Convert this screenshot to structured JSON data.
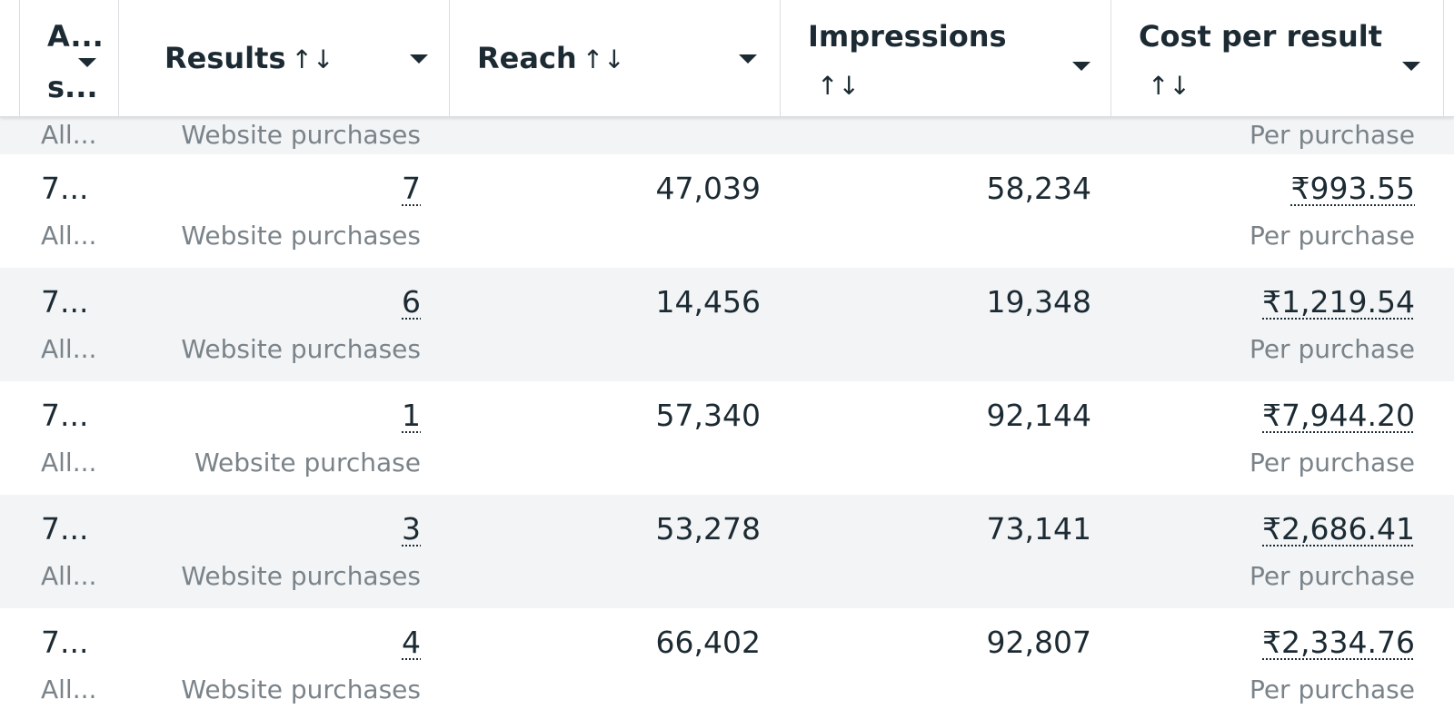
{
  "columns": {
    "account": {
      "line1": "A...",
      "line2": "s..."
    },
    "results": {
      "label": "Results",
      "sort": "↑↓"
    },
    "reach": {
      "label": "Reach",
      "sort": "↑↓"
    },
    "impressions": {
      "label": "Impressions",
      "sort": "↑↓"
    },
    "cost_per_result": {
      "label": "Cost per result",
      "sort": "↑↓"
    }
  },
  "partial_row": {
    "account_sub": "All...",
    "results_sub": "Website purchases",
    "cost_sub": "Per purchase"
  },
  "rows": [
    {
      "account": "7...",
      "account_sub": "All...",
      "results": "7",
      "results_sub": "Website purchases",
      "reach": "47,039",
      "impressions": "58,234",
      "cost": "₹993.55",
      "cost_sub": "Per purchase"
    },
    {
      "account": "7...",
      "account_sub": "All...",
      "results": "6",
      "results_sub": "Website purchases",
      "reach": "14,456",
      "impressions": "19,348",
      "cost": "₹1,219.54",
      "cost_sub": "Per purchase"
    },
    {
      "account": "7...",
      "account_sub": "All...",
      "results": "1",
      "results_sub": "Website purchase",
      "reach": "57,340",
      "impressions": "92,144",
      "cost": "₹7,944.20",
      "cost_sub": "Per purchase"
    },
    {
      "account": "7...",
      "account_sub": "All...",
      "results": "3",
      "results_sub": "Website purchases",
      "reach": "53,278",
      "impressions": "73,141",
      "cost": "₹2,686.41",
      "cost_sub": "Per purchase"
    },
    {
      "account": "7...",
      "account_sub": "All...",
      "results": "4",
      "results_sub": "Website purchases",
      "reach": "66,402",
      "impressions": "92,807",
      "cost": "₹2,334.76",
      "cost_sub": "Per purchase"
    }
  ]
}
